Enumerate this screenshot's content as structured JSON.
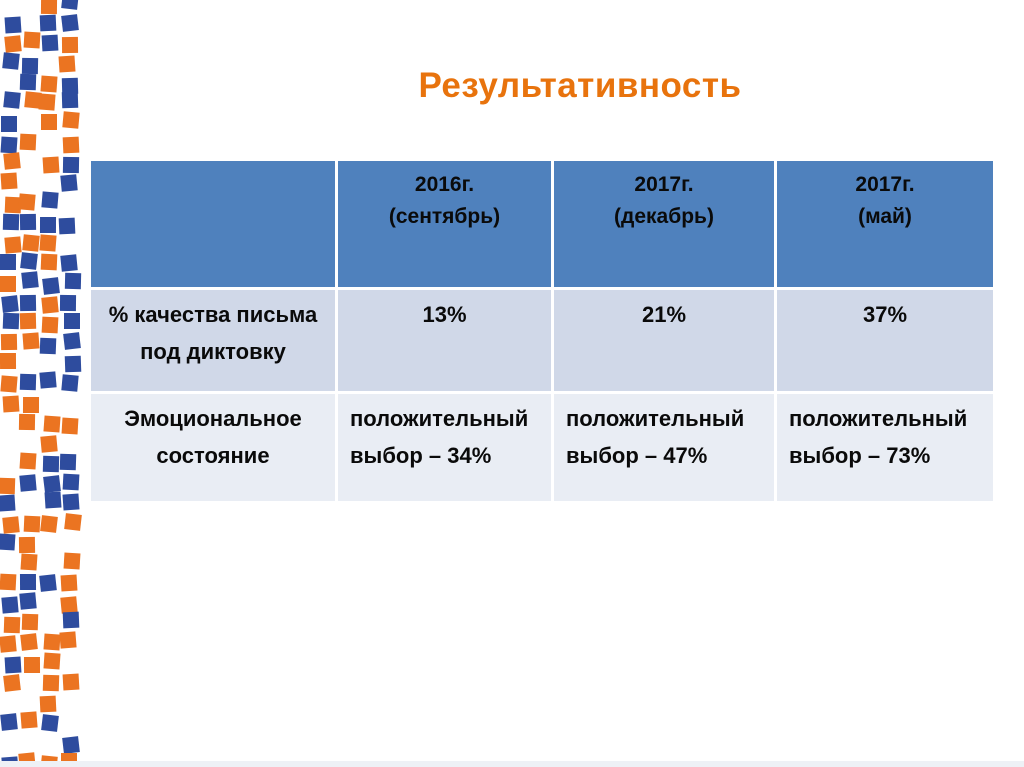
{
  "title": "Результативность",
  "theme": {
    "title_color": "#e8730d",
    "header_bg": "#4f81bd",
    "header_text": "#ffffff",
    "row_band_1_bg": "#d0d8e8",
    "row_band_2_bg": "#e9edf4",
    "cell_text": "#0a0a0a",
    "mosaic_orange": "#eb7421",
    "mosaic_blue": "#2e4c9e"
  },
  "table": {
    "columns": [
      "",
      "2016г.\n(сентябрь)",
      "2017г.\n(декабрь)",
      "2017г.\n(май)"
    ],
    "rows": [
      {
        "label": "% качества письма под диктовку",
        "values": [
          "13%",
          "21%",
          "37%"
        ]
      },
      {
        "label": "Эмоциональное состояние",
        "values": [
          "положительный выбор – 34%",
          "положительный выбор – 47%",
          "положительный выбор – 73%"
        ]
      }
    ]
  }
}
